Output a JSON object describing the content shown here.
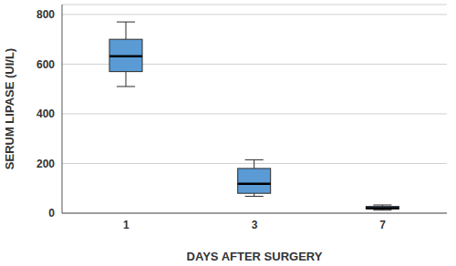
{
  "chart_data": {
    "type": "box",
    "x_label": "DAYS AFTER SURGERY",
    "y_label": "SERUM LIPASE (UI/L)",
    "categories": [
      "1",
      "3",
      "7"
    ],
    "stats": [
      {
        "min": 510,
        "q1": 570,
        "median": 632,
        "q3": 700,
        "max": 770
      },
      {
        "min": 68,
        "q1": 80,
        "median": 118,
        "q3": 180,
        "max": 215
      },
      {
        "min": 12,
        "q1": 17,
        "median": 20,
        "q3": 27,
        "max": 33
      }
    ],
    "color": "#5b9bd5",
    "ylim": [
      0,
      840
    ],
    "yticks": [
      0,
      200,
      400,
      600,
      800
    ],
    "grid": true
  }
}
